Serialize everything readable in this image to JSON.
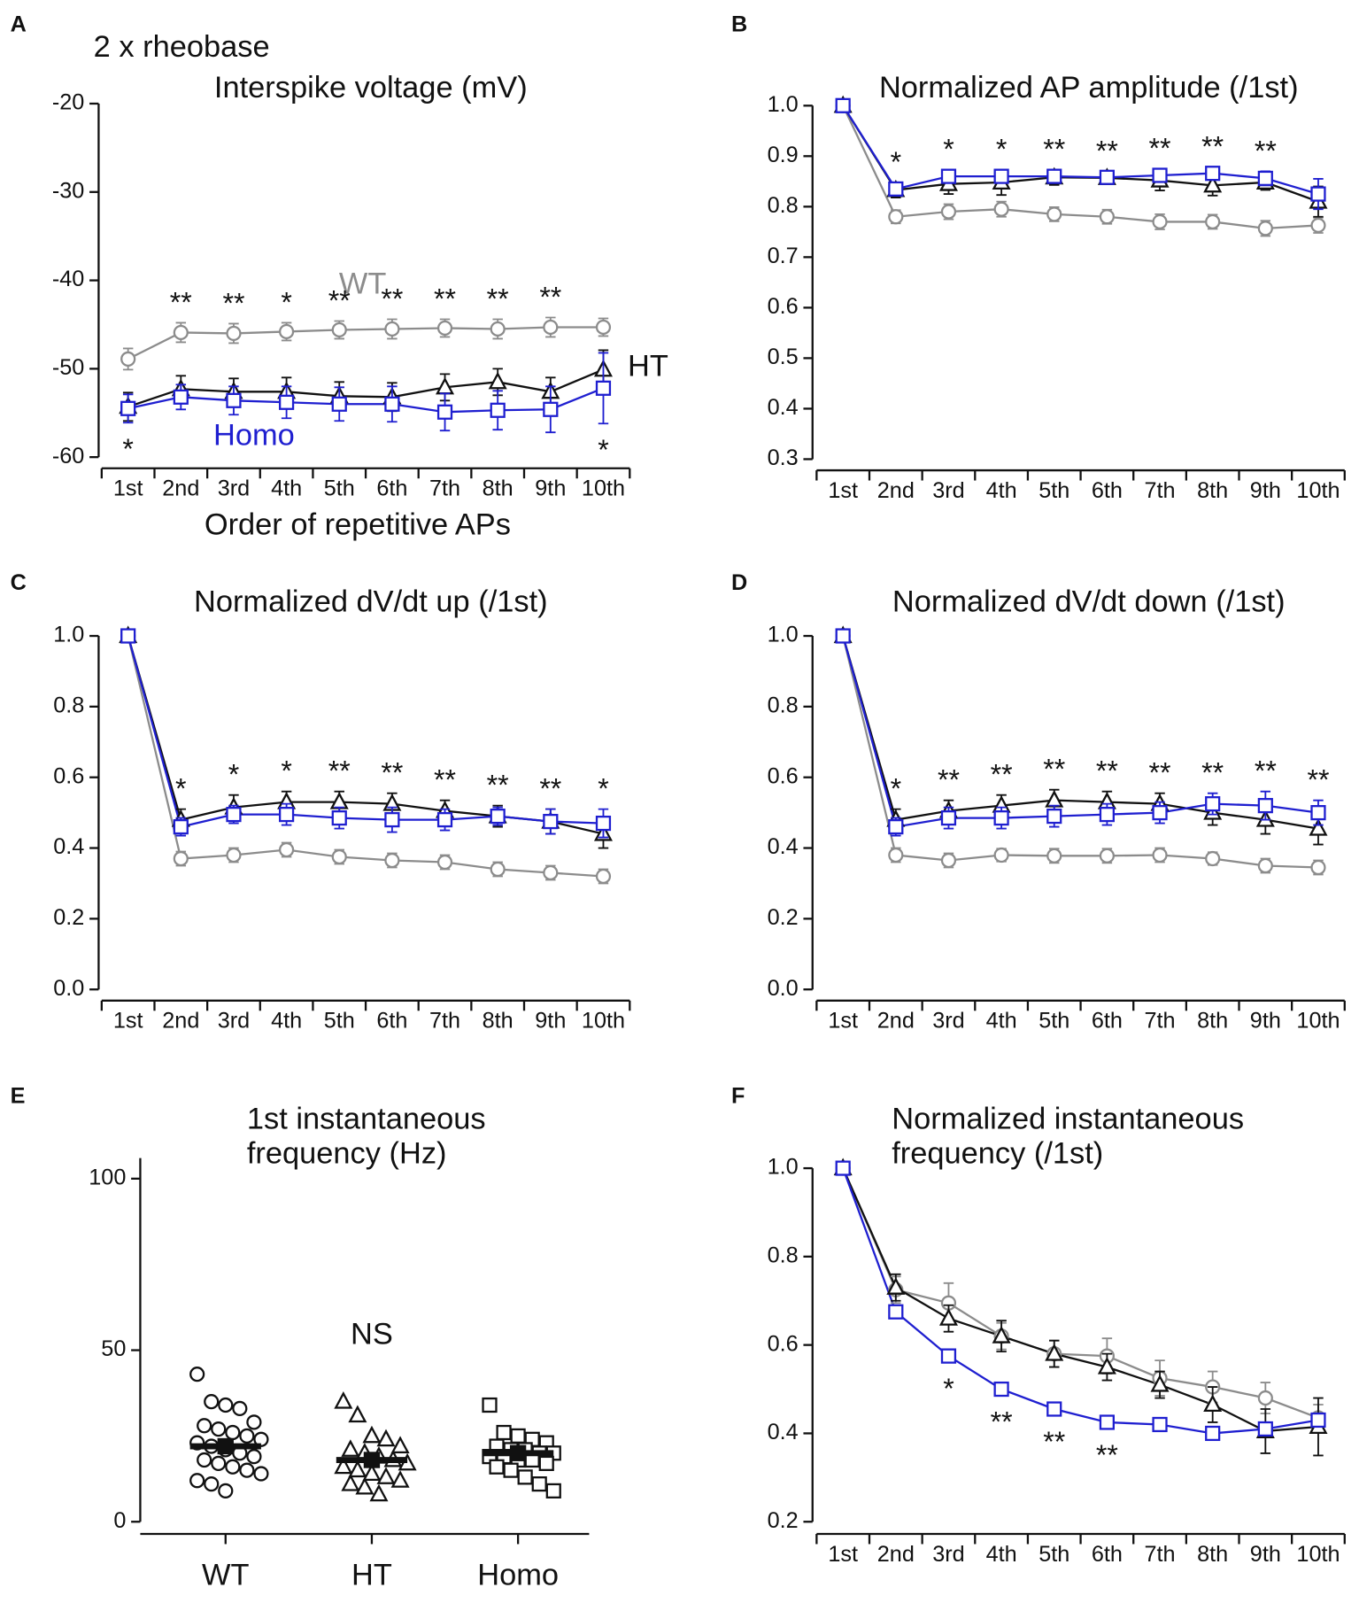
{
  "chart_data": [
    {
      "type": "line",
      "panel": "A",
      "subtitle": "2 x rheobase",
      "title": [
        "Interspike voltage (mV)"
      ],
      "x_label": "Order of repetitive APs",
      "categories": [
        "1st",
        "2nd",
        "3rd",
        "4th",
        "5th",
        "6th",
        "7th",
        "8th",
        "9th",
        "10th"
      ],
      "ylim": [
        -60,
        -20
      ],
      "yticks": [
        -20,
        -30,
        -40,
        -50,
        -60
      ],
      "series": [
        {
          "name": "WT",
          "color": "#8c8c8c",
          "marker": "circle",
          "values": [
            -48.9,
            -45.9,
            -46.0,
            -45.8,
            -45.6,
            -45.5,
            -45.4,
            -45.5,
            -45.3,
            -45.3
          ],
          "errors": [
            1.2,
            1.1,
            1.1,
            1.0,
            1.0,
            1.1,
            1.0,
            1.1,
            1.1,
            1.0
          ]
        },
        {
          "name": "HT",
          "color": "#111111",
          "marker": "triangle",
          "values": [
            -54.3,
            -52.3,
            -52.6,
            -52.6,
            -53.1,
            -53.2,
            -52.1,
            -51.5,
            -52.6,
            -50.1
          ],
          "errors": [
            1.6,
            1.5,
            1.5,
            1.6,
            1.6,
            1.6,
            1.5,
            1.5,
            1.6,
            2.2
          ]
        },
        {
          "name": "Homo",
          "color": "#1f1fd0",
          "marker": "square",
          "values": [
            -54.5,
            -53.2,
            -53.6,
            -53.8,
            -54.0,
            -54.0,
            -54.9,
            -54.7,
            -54.6,
            -52.2
          ],
          "errors": [
            1.6,
            1.4,
            1.6,
            1.8,
            1.9,
            2.0,
            2.1,
            2.2,
            2.6,
            4.0
          ]
        }
      ],
      "significance": [
        "*",
        "**",
        "**",
        "*",
        "**",
        "**",
        "**",
        "**",
        "**",
        "*"
      ]
    },
    {
      "type": "line",
      "panel": "B",
      "title": [
        "Normalized AP amplitude (/1st)"
      ],
      "categories": [
        "1st",
        "2nd",
        "3rd",
        "4th",
        "5th",
        "6th",
        "7th",
        "8th",
        "9th",
        "10th"
      ],
      "ylim": [
        0.3,
        1.0
      ],
      "yticks": [
        {
          "value": 1.0,
          "label": "1.0"
        },
        0.9,
        0.8,
        0.7,
        0.6,
        0.5,
        0.4,
        0.3
      ],
      "series": [
        {
          "color": "#8c8c8c",
          "marker": "circle",
          "values": [
            1.0,
            0.78,
            0.79,
            0.795,
            0.785,
            0.78,
            0.77,
            0.77,
            0.757,
            0.763
          ],
          "errors": [
            0,
            0.013,
            0.015,
            0.015,
            0.014,
            0.014,
            0.015,
            0.014,
            0.015,
            0.015
          ]
        },
        {
          "color": "#111111",
          "marker": "triangle",
          "values": [
            1.0,
            0.833,
            0.845,
            0.848,
            0.858,
            0.857,
            0.852,
            0.842,
            0.848,
            0.81
          ],
          "errors": [
            0,
            0.015,
            0.02,
            0.025,
            0.015,
            0.012,
            0.02,
            0.02,
            0.015,
            0.03
          ]
        },
        {
          "color": "#1f1fd0",
          "marker": "square",
          "values": [
            1.0,
            0.835,
            0.86,
            0.86,
            0.86,
            0.858,
            0.862,
            0.866,
            0.856,
            0.825
          ],
          "errors": [
            0,
            0.012,
            0.013,
            0.013,
            0.012,
            0.012,
            0.013,
            0.012,
            0.014,
            0.03
          ]
        }
      ],
      "significance": [
        null,
        "*",
        "*",
        "*",
        "**",
        "**",
        "**",
        "**",
        "**",
        null
      ]
    },
    {
      "type": "line",
      "panel": "C",
      "title": [
        "Normalized dV/dt up (/1st)"
      ],
      "categories": [
        "1st",
        "2nd",
        "3rd",
        "4th",
        "5th",
        "6th",
        "7th",
        "8th",
        "9th",
        "10th"
      ],
      "ylim": [
        0.0,
        1.0
      ],
      "yticks": [
        {
          "value": 1.0,
          "label": "1.0"
        },
        0.8,
        0.6,
        0.4,
        0.2,
        {
          "value": 0.0,
          "label": "0.0"
        }
      ],
      "series": [
        {
          "color": "#8c8c8c",
          "marker": "circle",
          "values": [
            1.0,
            0.37,
            0.38,
            0.395,
            0.375,
            0.365,
            0.36,
            0.34,
            0.33,
            0.32
          ],
          "errors": [
            0,
            0.02,
            0.02,
            0.02,
            0.02,
            0.02,
            0.02,
            0.02,
            0.02,
            0.02
          ]
        },
        {
          "color": "#111111",
          "marker": "triangle",
          "values": [
            1.0,
            0.48,
            0.515,
            0.53,
            0.53,
            0.525,
            0.505,
            0.49,
            0.475,
            0.44
          ],
          "errors": [
            0,
            0.03,
            0.035,
            0.03,
            0.03,
            0.03,
            0.03,
            0.03,
            0.035,
            0.04
          ]
        },
        {
          "color": "#1f1fd0",
          "marker": "square",
          "values": [
            1.0,
            0.46,
            0.495,
            0.495,
            0.485,
            0.48,
            0.48,
            0.49,
            0.475,
            0.47
          ],
          "errors": [
            0,
            0.025,
            0.025,
            0.03,
            0.03,
            0.035,
            0.03,
            0.025,
            0.035,
            0.04
          ]
        }
      ],
      "significance": [
        null,
        "*",
        "*",
        "*",
        "**",
        "**",
        "**",
        "**",
        "**",
        "*"
      ]
    },
    {
      "type": "line",
      "panel": "D",
      "title": [
        "Normalized dV/dt down (/1st)"
      ],
      "categories": [
        "1st",
        "2nd",
        "3rd",
        "4th",
        "5th",
        "6th",
        "7th",
        "8th",
        "9th",
        "10th"
      ],
      "ylim": [
        0.0,
        1.0
      ],
      "yticks": [
        {
          "value": 1.0,
          "label": "1.0"
        },
        0.8,
        0.6,
        0.4,
        0.2,
        {
          "value": 0.0,
          "label": "0.0"
        }
      ],
      "series": [
        {
          "color": "#8c8c8c",
          "marker": "circle",
          "values": [
            1.0,
            0.38,
            0.365,
            0.38,
            0.378,
            0.378,
            0.38,
            0.37,
            0.35,
            0.345
          ],
          "errors": [
            0,
            0.02,
            0.02,
            0.018,
            0.02,
            0.02,
            0.02,
            0.018,
            0.02,
            0.02
          ]
        },
        {
          "color": "#111111",
          "marker": "triangle",
          "values": [
            1.0,
            0.48,
            0.505,
            0.52,
            0.535,
            0.53,
            0.525,
            0.5,
            0.48,
            0.455
          ],
          "errors": [
            0,
            0.03,
            0.03,
            0.03,
            0.03,
            0.03,
            0.03,
            0.035,
            0.04,
            0.045
          ]
        },
        {
          "color": "#1f1fd0",
          "marker": "square",
          "values": [
            1.0,
            0.46,
            0.485,
            0.485,
            0.49,
            0.495,
            0.5,
            0.525,
            0.52,
            0.5
          ],
          "errors": [
            0,
            0.025,
            0.03,
            0.03,
            0.03,
            0.03,
            0.03,
            0.03,
            0.04,
            0.035
          ]
        }
      ],
      "significance": [
        null,
        "*",
        "**",
        "**",
        "**",
        "**",
        "**",
        "**",
        "**",
        "**"
      ]
    },
    {
      "type": "scatter",
      "panel": "E",
      "title": [
        "1st instantaneous",
        "frequency (Hz)"
      ],
      "categories": [
        "WT",
        "HT",
        "Homo"
      ],
      "ylim": [
        0,
        106
      ],
      "yticks": [
        100,
        50,
        0
      ],
      "series": [
        {
          "color": "#111111",
          "marker": "circle",
          "values": [
            43,
            35,
            34,
            33,
            29,
            28,
            27,
            26,
            25,
            24,
            23,
            22,
            21,
            20,
            19,
            18,
            17,
            16,
            15,
            14,
            12,
            11,
            9
          ]
        },
        {
          "color": "#111111",
          "marker": "triangle",
          "values": [
            35,
            31,
            25,
            24,
            22,
            21,
            20,
            19,
            18,
            17,
            16,
            15,
            14,
            13,
            12,
            11,
            10,
            8
          ]
        },
        {
          "color": "#111111",
          "marker": "square",
          "values": [
            34,
            26,
            25,
            24,
            23,
            22,
            21,
            21,
            20,
            20,
            19,
            19,
            18,
            18,
            17,
            16,
            15,
            13,
            11,
            9
          ]
        }
      ],
      "means": [
        22,
        18,
        20
      ],
      "annotation": "NS"
    },
    {
      "type": "line",
      "panel": "F",
      "title": [
        "Normalized instantaneous",
        "frequency (/1st)"
      ],
      "categories": [
        "1st",
        "2nd",
        "3rd",
        "4th",
        "5th",
        "6th",
        "7th",
        "8th",
        "9th",
        "10th"
      ],
      "ylim": [
        0.2,
        1.0
      ],
      "yticks": [
        {
          "value": 1.0,
          "label": "1.0"
        },
        0.8,
        0.6,
        0.4,
        0.2
      ],
      "series": [
        {
          "color": "#8c8c8c",
          "marker": "circle",
          "values": [
            1.0,
            0.725,
            0.695,
            0.62,
            0.58,
            0.575,
            0.525,
            0.505,
            0.48,
            0.435
          ],
          "errors": [
            0,
            0.03,
            0.045,
            0.03,
            0.03,
            0.04,
            0.04,
            0.035,
            0.035,
            0.03
          ]
        },
        {
          "color": "#111111",
          "marker": "triangle",
          "values": [
            1.0,
            0.73,
            0.66,
            0.62,
            0.58,
            0.55,
            0.51,
            0.465,
            0.405,
            0.415
          ],
          "errors": [
            0,
            0.03,
            0.03,
            0.035,
            0.03,
            0.03,
            0.03,
            0.04,
            0.05,
            0.065
          ]
        },
        {
          "color": "#1f1fd0",
          "marker": "square",
          "values": [
            1.0,
            0.675,
            0.575,
            0.5,
            0.455,
            0.425,
            0.42,
            0.4,
            0.41,
            0.43
          ],
          "errors": [
            0,
            0.01,
            0.015,
            0.015,
            0.015,
            0.015,
            0.015,
            0.015,
            0.015,
            0.015
          ]
        }
      ],
      "significance": [
        null,
        null,
        "*",
        "**",
        "**",
        "**",
        null,
        null,
        null,
        null
      ]
    }
  ]
}
